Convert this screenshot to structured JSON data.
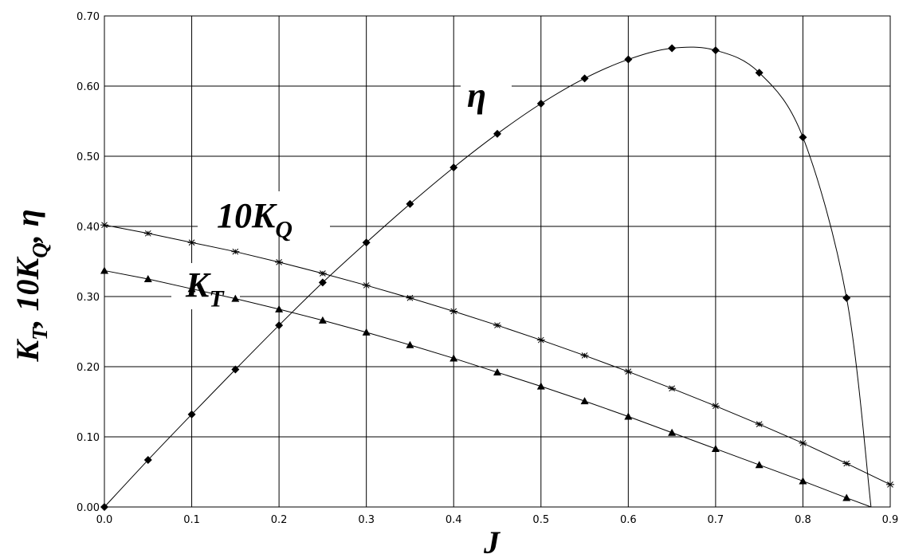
{
  "chart_data": {
    "type": "line",
    "xlabel": "J",
    "ylabel": "K_T, 10K_Q, η",
    "xlim": [
      0,
      0.9
    ],
    "ylim": [
      0,
      0.7
    ],
    "x_ticks": [
      "0.0",
      "0.1",
      "0.2",
      "0.3",
      "0.4",
      "0.5",
      "0.6",
      "0.7",
      "0.8",
      "0.9"
    ],
    "y_ticks": [
      "0.00",
      "0.10",
      "0.20",
      "0.30",
      "0.40",
      "0.50",
      "0.60",
      "0.70"
    ],
    "grid": true,
    "series": [
      {
        "name": "η",
        "marker": "diamond",
        "x": [
          0,
          0.05,
          0.1,
          0.15,
          0.2,
          0.25,
          0.3,
          0.35,
          0.4,
          0.45,
          0.5,
          0.55,
          0.6,
          0.65,
          0.7,
          0.75,
          0.8,
          0.85
        ],
        "y": [
          0,
          0.067,
          0.132,
          0.196,
          0.259,
          0.32,
          0.377,
          0.432,
          0.484,
          0.532,
          0.575,
          0.611,
          0.638,
          0.654,
          0.651,
          0.619,
          0.527,
          0.298
        ],
        "curve_end": [
          0.878,
          0
        ]
      },
      {
        "name": "10K_Q",
        "marker": "star",
        "x": [
          0,
          0.05,
          0.1,
          0.15,
          0.2,
          0.25,
          0.3,
          0.35,
          0.4,
          0.45,
          0.5,
          0.55,
          0.6,
          0.65,
          0.7,
          0.75,
          0.8,
          0.85,
          0.9
        ],
        "y": [
          0.402,
          0.39,
          0.377,
          0.364,
          0.349,
          0.333,
          0.316,
          0.298,
          0.279,
          0.259,
          0.238,
          0.216,
          0.193,
          0.169,
          0.144,
          0.118,
          0.091,
          0.062,
          0.032
        ]
      },
      {
        "name": "K_T",
        "marker": "triangle",
        "x": [
          0,
          0.05,
          0.1,
          0.15,
          0.2,
          0.25,
          0.3,
          0.35,
          0.4,
          0.45,
          0.5,
          0.55,
          0.6,
          0.65,
          0.7,
          0.75,
          0.8,
          0.85
        ],
        "y": [
          0.337,
          0.325,
          0.311,
          0.297,
          0.282,
          0.266,
          0.249,
          0.231,
          0.212,
          0.192,
          0.172,
          0.151,
          0.129,
          0.106,
          0.083,
          0.06,
          0.037,
          0.013
        ],
        "line_end": [
          0.878,
          0
        ]
      }
    ]
  }
}
